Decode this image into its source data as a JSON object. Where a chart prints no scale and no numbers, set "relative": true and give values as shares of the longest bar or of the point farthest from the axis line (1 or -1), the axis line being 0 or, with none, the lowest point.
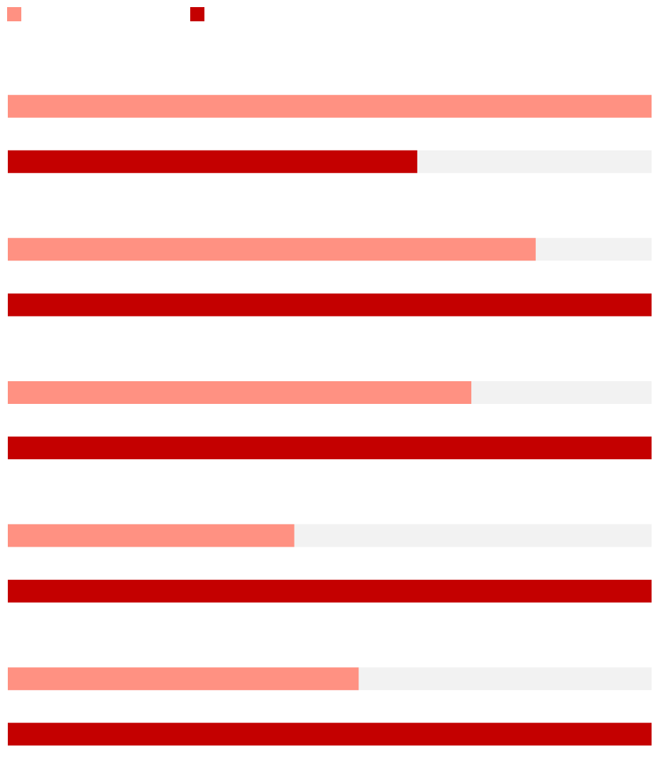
{
  "chart_data": {
    "type": "bar",
    "orientation": "horizontal",
    "relative": true,
    "categories": [
      null,
      null,
      null,
      null,
      null
    ],
    "series": [
      {
        "color": "#ff9182",
        "values": [
          1,
          0.82,
          0.72,
          0.445,
          0.545
        ]
      },
      {
        "color": "#c40000",
        "values": [
          0.636,
          1,
          1,
          1,
          1
        ]
      }
    ]
  }
}
